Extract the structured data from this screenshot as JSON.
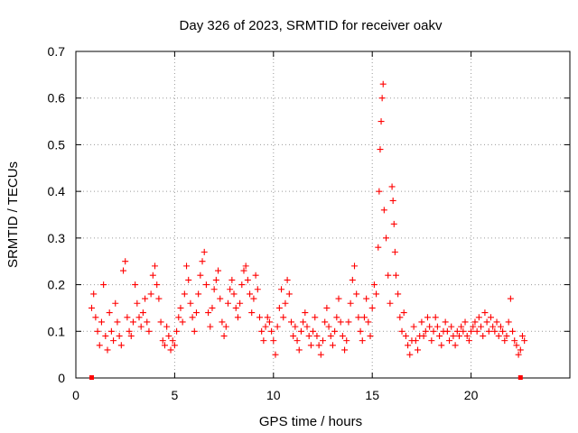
{
  "chart_data": {
    "type": "scatter",
    "title": "Day 326 of 2023, SRMTID for receiver oakv",
    "xlabel": "GPS time / hours",
    "ylabel": "SRMTID / TECUs",
    "xlim": [
      0,
      25
    ],
    "ylim": [
      0,
      0.7
    ],
    "x_ticks": [
      0,
      5,
      10,
      15,
      20
    ],
    "x_tick_labels": [
      "0",
      "5",
      "10",
      "15",
      "20"
    ],
    "y_ticks": [
      0,
      0.1,
      0.2,
      0.3,
      0.4,
      0.5,
      0.6,
      0.7
    ],
    "y_tick_labels": [
      "0",
      "0.1",
      "0.2",
      "0.3",
      "0.4",
      "0.5",
      "0.6",
      "0.7"
    ],
    "grid": true,
    "marker": "plus",
    "series": [
      {
        "name": "SRMTID oakv",
        "color": "#ff0000",
        "points": [
          [
            0.8,
            0.15
          ],
          [
            0.9,
            0.18
          ],
          [
            1.0,
            0.13
          ],
          [
            1.1,
            0.1
          ],
          [
            1.2,
            0.07
          ],
          [
            1.3,
            0.12
          ],
          [
            1.4,
            0.2
          ],
          [
            1.5,
            0.09
          ],
          [
            1.6,
            0.06
          ],
          [
            1.7,
            0.14
          ],
          [
            1.8,
            0.1
          ],
          [
            1.9,
            0.08
          ],
          [
            2.0,
            0.16
          ],
          [
            2.1,
            0.12
          ],
          [
            2.2,
            0.09
          ],
          [
            2.3,
            0.07
          ],
          [
            2.4,
            0.23
          ],
          [
            2.5,
            0.25
          ],
          [
            2.6,
            0.13
          ],
          [
            2.7,
            0.1
          ],
          [
            2.8,
            0.09
          ],
          [
            2.9,
            0.12
          ],
          [
            3.0,
            0.2
          ],
          [
            3.1,
            0.16
          ],
          [
            3.2,
            0.13
          ],
          [
            3.3,
            0.11
          ],
          [
            3.4,
            0.14
          ],
          [
            3.5,
            0.17
          ],
          [
            3.6,
            0.12
          ],
          [
            3.7,
            0.1
          ],
          [
            3.8,
            0.18
          ],
          [
            3.9,
            0.22
          ],
          [
            4.0,
            0.24
          ],
          [
            4.1,
            0.2
          ],
          [
            4.2,
            0.17
          ],
          [
            4.3,
            0.12
          ],
          [
            4.4,
            0.08
          ],
          [
            4.5,
            0.07
          ],
          [
            4.6,
            0.11
          ],
          [
            4.7,
            0.09
          ],
          [
            4.8,
            0.06
          ],
          [
            4.9,
            0.08
          ],
          [
            5.0,
            0.07
          ],
          [
            5.1,
            0.1
          ],
          [
            5.2,
            0.13
          ],
          [
            5.3,
            0.15
          ],
          [
            5.4,
            0.12
          ],
          [
            5.5,
            0.18
          ],
          [
            5.6,
            0.24
          ],
          [
            5.7,
            0.21
          ],
          [
            5.8,
            0.16
          ],
          [
            5.9,
            0.13
          ],
          [
            6.0,
            0.1
          ],
          [
            6.1,
            0.14
          ],
          [
            6.2,
            0.18
          ],
          [
            6.3,
            0.22
          ],
          [
            6.4,
            0.25
          ],
          [
            6.5,
            0.27
          ],
          [
            6.6,
            0.2
          ],
          [
            6.7,
            0.14
          ],
          [
            6.8,
            0.11
          ],
          [
            6.9,
            0.15
          ],
          [
            7.0,
            0.19
          ],
          [
            7.1,
            0.21
          ],
          [
            7.2,
            0.23
          ],
          [
            7.3,
            0.17
          ],
          [
            7.4,
            0.12
          ],
          [
            7.5,
            0.09
          ],
          [
            7.6,
            0.11
          ],
          [
            7.7,
            0.16
          ],
          [
            7.8,
            0.19
          ],
          [
            7.9,
            0.21
          ],
          [
            8.0,
            0.18
          ],
          [
            8.1,
            0.15
          ],
          [
            8.2,
            0.13
          ],
          [
            8.3,
            0.16
          ],
          [
            8.4,
            0.2
          ],
          [
            8.5,
            0.23
          ],
          [
            8.6,
            0.24
          ],
          [
            8.7,
            0.21
          ],
          [
            8.8,
            0.18
          ],
          [
            8.9,
            0.14
          ],
          [
            9.0,
            0.17
          ],
          [
            9.1,
            0.22
          ],
          [
            9.2,
            0.19
          ],
          [
            9.3,
            0.13
          ],
          [
            9.4,
            0.1
          ],
          [
            9.5,
            0.08
          ],
          [
            9.6,
            0.11
          ],
          [
            9.7,
            0.13
          ],
          [
            9.8,
            0.12
          ],
          [
            9.9,
            0.1
          ],
          [
            10.0,
            0.08
          ],
          [
            10.1,
            0.05
          ],
          [
            10.2,
            0.11
          ],
          [
            10.3,
            0.15
          ],
          [
            10.4,
            0.19
          ],
          [
            10.5,
            0.13
          ],
          [
            10.6,
            0.16
          ],
          [
            10.7,
            0.21
          ],
          [
            10.8,
            0.18
          ],
          [
            10.9,
            0.12
          ],
          [
            11.0,
            0.09
          ],
          [
            11.1,
            0.11
          ],
          [
            11.2,
            0.08
          ],
          [
            11.3,
            0.06
          ],
          [
            11.4,
            0.1
          ],
          [
            11.5,
            0.12
          ],
          [
            11.6,
            0.14
          ],
          [
            11.7,
            0.11
          ],
          [
            11.8,
            0.09
          ],
          [
            11.9,
            0.07
          ],
          [
            12.0,
            0.1
          ],
          [
            12.1,
            0.13
          ],
          [
            12.2,
            0.09
          ],
          [
            12.3,
            0.07
          ],
          [
            12.4,
            0.05
          ],
          [
            12.5,
            0.08
          ],
          [
            12.6,
            0.12
          ],
          [
            12.7,
            0.15
          ],
          [
            12.8,
            0.11
          ],
          [
            12.9,
            0.09
          ],
          [
            13.0,
            0.07
          ],
          [
            13.1,
            0.1
          ],
          [
            13.2,
            0.13
          ],
          [
            13.3,
            0.17
          ],
          [
            13.4,
            0.12
          ],
          [
            13.5,
            0.09
          ],
          [
            13.6,
            0.06
          ],
          [
            13.7,
            0.08
          ],
          [
            13.8,
            0.12
          ],
          [
            13.9,
            0.16
          ],
          [
            14.0,
            0.21
          ],
          [
            14.1,
            0.24
          ],
          [
            14.2,
            0.18
          ],
          [
            14.3,
            0.13
          ],
          [
            14.4,
            0.1
          ],
          [
            14.5,
            0.08
          ],
          [
            14.6,
            0.13
          ],
          [
            14.7,
            0.17
          ],
          [
            14.8,
            0.12
          ],
          [
            14.9,
            0.09
          ],
          [
            15.0,
            0.15
          ],
          [
            15.1,
            0.2
          ],
          [
            15.2,
            0.18
          ],
          [
            15.3,
            0.28
          ],
          [
            15.35,
            0.4
          ],
          [
            15.4,
            0.49
          ],
          [
            15.45,
            0.55
          ],
          [
            15.5,
            0.6
          ],
          [
            15.55,
            0.63
          ],
          [
            15.6,
            0.36
          ],
          [
            15.7,
            0.3
          ],
          [
            15.8,
            0.22
          ],
          [
            15.9,
            0.16
          ],
          [
            16.0,
            0.41
          ],
          [
            16.05,
            0.38
          ],
          [
            16.1,
            0.33
          ],
          [
            16.15,
            0.27
          ],
          [
            16.2,
            0.22
          ],
          [
            16.3,
            0.18
          ],
          [
            16.4,
            0.13
          ],
          [
            16.5,
            0.1
          ],
          [
            16.6,
            0.14
          ],
          [
            16.7,
            0.09
          ],
          [
            16.8,
            0.07
          ],
          [
            16.9,
            0.05
          ],
          [
            17.0,
            0.08
          ],
          [
            17.1,
            0.11
          ],
          [
            17.2,
            0.08
          ],
          [
            17.3,
            0.06
          ],
          [
            17.4,
            0.09
          ],
          [
            17.5,
            0.12
          ],
          [
            17.6,
            0.09
          ],
          [
            17.7,
            0.1
          ],
          [
            17.8,
            0.13
          ],
          [
            17.9,
            0.11
          ],
          [
            18.0,
            0.08
          ],
          [
            18.1,
            0.1
          ],
          [
            18.2,
            0.13
          ],
          [
            18.3,
            0.11
          ],
          [
            18.4,
            0.09
          ],
          [
            18.5,
            0.07
          ],
          [
            18.6,
            0.1
          ],
          [
            18.7,
            0.12
          ],
          [
            18.8,
            0.1
          ],
          [
            18.9,
            0.08
          ],
          [
            19.0,
            0.11
          ],
          [
            19.1,
            0.09
          ],
          [
            19.2,
            0.07
          ],
          [
            19.3,
            0.1
          ],
          [
            19.4,
            0.09
          ],
          [
            19.5,
            0.11
          ],
          [
            19.6,
            0.1
          ],
          [
            19.7,
            0.12
          ],
          [
            19.8,
            0.09
          ],
          [
            19.9,
            0.08
          ],
          [
            20.0,
            0.1
          ],
          [
            20.1,
            0.11
          ],
          [
            20.2,
            0.12
          ],
          [
            20.3,
            0.1
          ],
          [
            20.4,
            0.13
          ],
          [
            20.5,
            0.11
          ],
          [
            20.6,
            0.09
          ],
          [
            20.7,
            0.14
          ],
          [
            20.8,
            0.12
          ],
          [
            20.9,
            0.1
          ],
          [
            21.0,
            0.13
          ],
          [
            21.1,
            0.11
          ],
          [
            21.2,
            0.1
          ],
          [
            21.3,
            0.12
          ],
          [
            21.4,
            0.09
          ],
          [
            21.5,
            0.11
          ],
          [
            21.6,
            0.1
          ],
          [
            21.7,
            0.08
          ],
          [
            21.8,
            0.09
          ],
          [
            21.9,
            0.12
          ],
          [
            22.0,
            0.17
          ],
          [
            22.1,
            0.1
          ],
          [
            22.2,
            0.08
          ],
          [
            22.3,
            0.07
          ],
          [
            22.4,
            0.05
          ],
          [
            22.5,
            0.06
          ],
          [
            22.6,
            0.09
          ],
          [
            22.7,
            0.08
          ]
        ]
      }
    ],
    "edge_markers": [
      0.8,
      22.5
    ]
  }
}
